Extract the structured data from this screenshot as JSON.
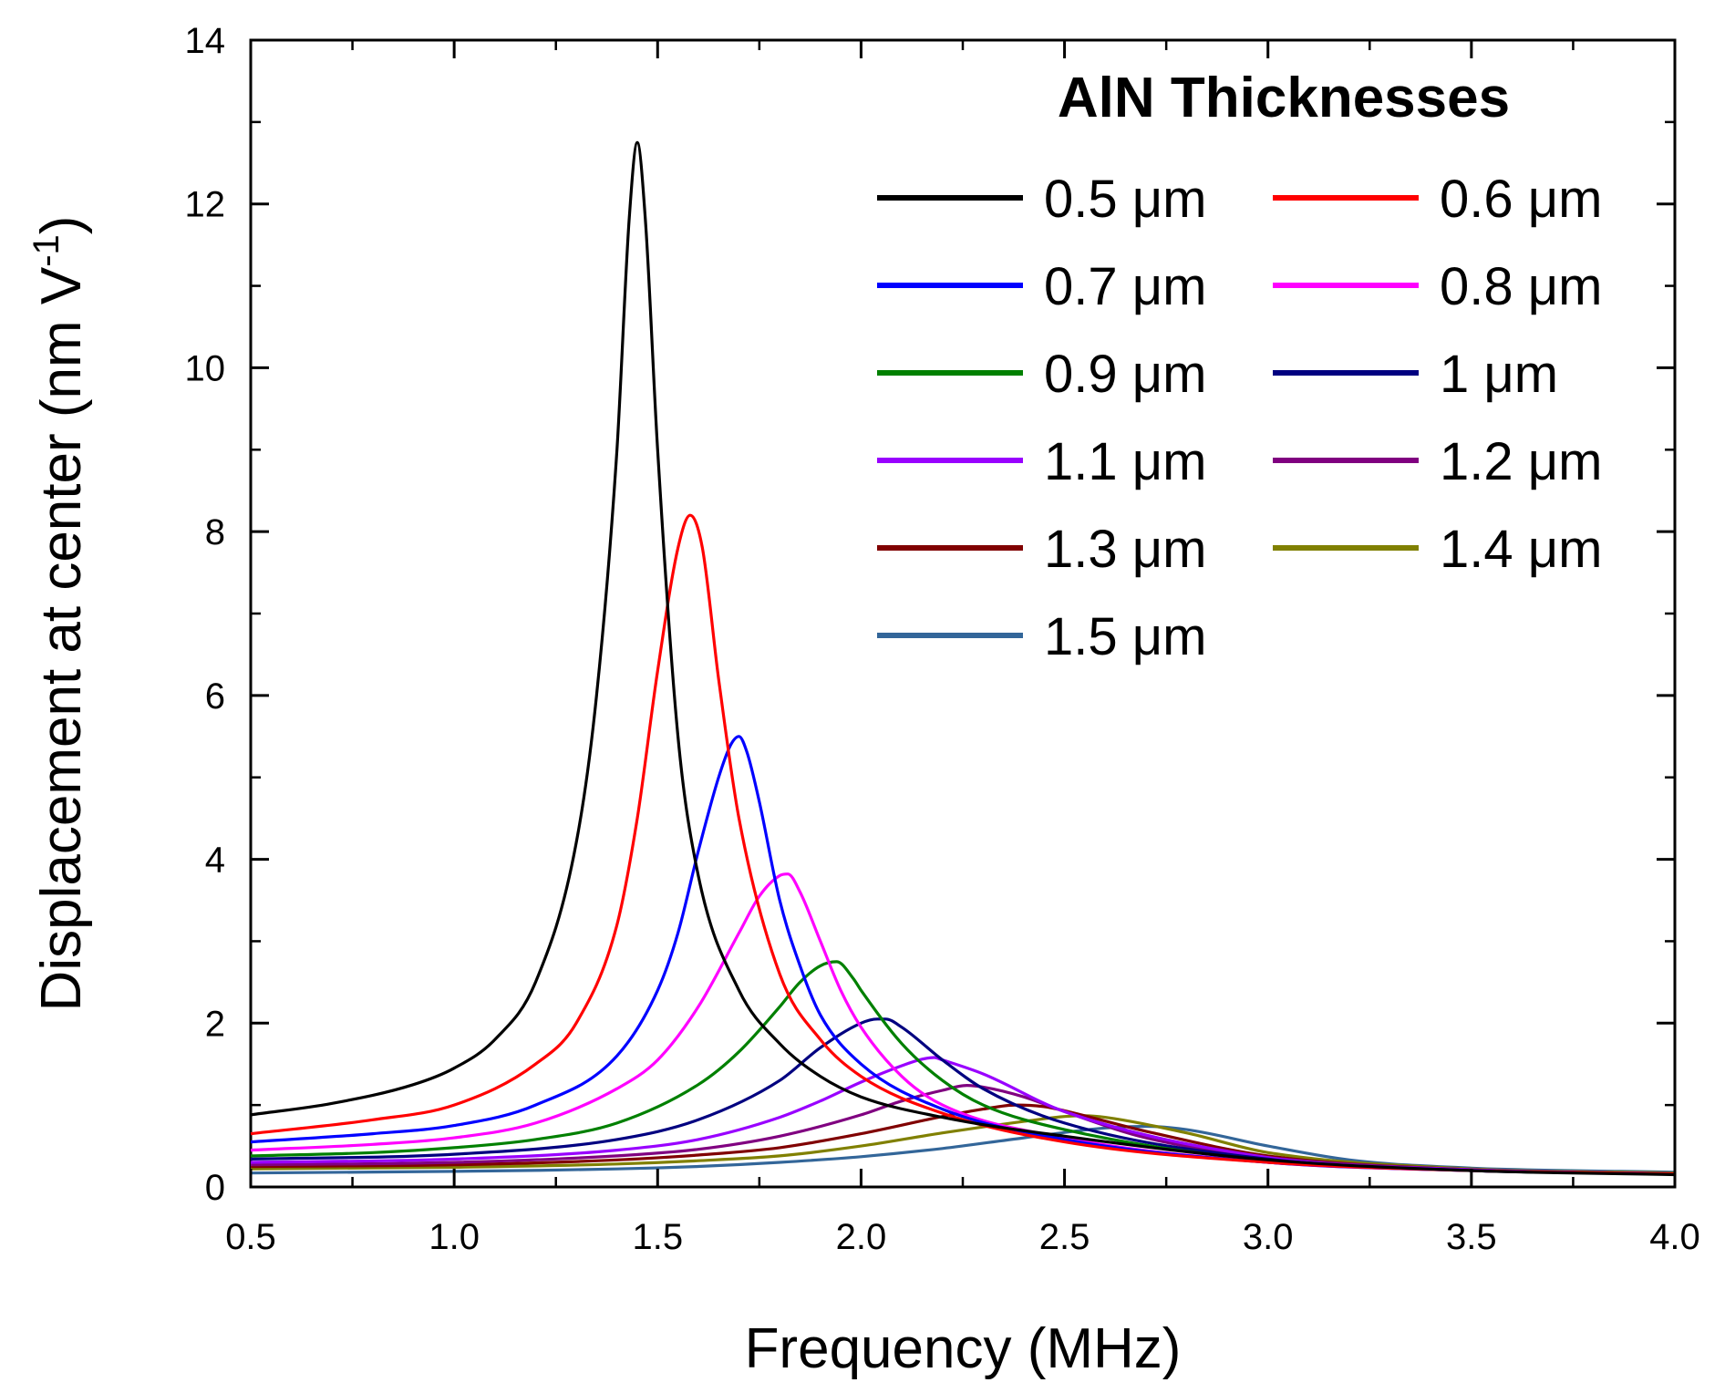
{
  "chart_data": {
    "type": "line",
    "title": "",
    "xlabel": "Frequency (MHz)",
    "ylabel": "Displacement at center (nm V",
    "ylabel_sup": "-1",
    "ylabel_close": ")",
    "xlim": [
      0.5,
      4.0
    ],
    "ylim": [
      0,
      14
    ],
    "xticks": [
      0.5,
      1.0,
      1.5,
      2.0,
      2.5,
      3.0,
      3.5,
      4.0
    ],
    "xtick_labels": [
      "0.5",
      "1.0",
      "1.5",
      "2.0",
      "2.5",
      "3.0",
      "3.5",
      "4.0"
    ],
    "yticks": [
      0,
      2,
      4,
      6,
      8,
      10,
      12,
      14
    ],
    "ytick_labels": [
      "0",
      "2",
      "4",
      "6",
      "8",
      "10",
      "12",
      "14"
    ],
    "grid": false,
    "legend_title": "AlN Thicknesses",
    "legend_position": "top-right",
    "series": [
      {
        "name": "0.5 μm",
        "color": "#000000",
        "x": [
          0.5,
          0.7,
          0.9,
          1.0,
          1.1,
          1.2,
          1.3,
          1.35,
          1.4,
          1.43,
          1.45,
          1.47,
          1.5,
          1.55,
          1.6,
          1.7,
          1.8,
          1.9,
          2.0,
          2.2,
          2.5,
          3.0,
          3.5,
          4.0
        ],
        "y": [
          0.88,
          1.02,
          1.25,
          1.45,
          1.8,
          2.5,
          4.2,
          6.0,
          9.0,
          11.8,
          12.75,
          11.8,
          9.0,
          5.5,
          3.8,
          2.4,
          1.75,
          1.35,
          1.1,
          0.85,
          0.62,
          0.33,
          0.2,
          0.15
        ]
      },
      {
        "name": "0.6 μm",
        "color": "#ff0000",
        "x": [
          0.5,
          0.8,
          1.0,
          1.2,
          1.3,
          1.4,
          1.45,
          1.5,
          1.55,
          1.58,
          1.61,
          1.65,
          1.7,
          1.8,
          1.9,
          2.0,
          2.2,
          2.5,
          3.0,
          3.5,
          4.0
        ],
        "y": [
          0.65,
          0.82,
          1.0,
          1.5,
          2.0,
          3.2,
          4.5,
          6.3,
          7.8,
          8.2,
          7.8,
          6.2,
          4.5,
          2.6,
          1.8,
          1.35,
          0.9,
          0.55,
          0.3,
          0.2,
          0.16
        ]
      },
      {
        "name": "0.7 μm",
        "color": "#0000ff",
        "x": [
          0.5,
          0.8,
          1.0,
          1.2,
          1.4,
          1.5,
          1.55,
          1.6,
          1.65,
          1.68,
          1.7,
          1.72,
          1.75,
          1.8,
          1.85,
          1.9,
          2.0,
          2.2,
          2.5,
          3.0,
          3.5,
          4.0
        ],
        "y": [
          0.55,
          0.65,
          0.75,
          1.0,
          1.6,
          2.4,
          3.1,
          4.1,
          5.0,
          5.4,
          5.5,
          5.3,
          4.7,
          3.5,
          2.7,
          2.1,
          1.5,
          0.95,
          0.58,
          0.3,
          0.2,
          0.16
        ]
      },
      {
        "name": "0.8 μm",
        "color": "#ff00ff",
        "x": [
          0.5,
          0.8,
          1.0,
          1.2,
          1.4,
          1.5,
          1.6,
          1.7,
          1.75,
          1.8,
          1.82,
          1.85,
          1.9,
          1.95,
          2.0,
          2.1,
          2.2,
          2.5,
          3.0,
          3.5,
          4.0
        ],
        "y": [
          0.45,
          0.52,
          0.6,
          0.78,
          1.2,
          1.55,
          2.2,
          3.1,
          3.55,
          3.8,
          3.82,
          3.6,
          3.0,
          2.4,
          1.95,
          1.35,
          1.0,
          0.6,
          0.3,
          0.2,
          0.16
        ]
      },
      {
        "name": "0.9 μm",
        "color": "#008000",
        "x": [
          0.5,
          0.8,
          1.0,
          1.2,
          1.4,
          1.6,
          1.7,
          1.8,
          1.85,
          1.9,
          1.94,
          1.98,
          2.0,
          2.1,
          2.2,
          2.3,
          2.5,
          3.0,
          3.5,
          4.0
        ],
        "y": [
          0.38,
          0.42,
          0.48,
          0.58,
          0.78,
          1.25,
          1.65,
          2.2,
          2.5,
          2.7,
          2.75,
          2.55,
          2.4,
          1.75,
          1.3,
          1.0,
          0.7,
          0.32,
          0.2,
          0.16
        ]
      },
      {
        "name": "1 μm",
        "color": "#000080",
        "x": [
          0.5,
          1.0,
          1.4,
          1.6,
          1.8,
          1.9,
          2.0,
          2.04,
          2.06,
          2.1,
          2.2,
          2.3,
          2.5,
          3.0,
          3.5,
          4.0
        ],
        "y": [
          0.34,
          0.4,
          0.58,
          0.82,
          1.3,
          1.7,
          2.0,
          2.05,
          2.05,
          1.95,
          1.55,
          1.2,
          0.78,
          0.34,
          0.2,
          0.16
        ]
      },
      {
        "name": "1.1 μm",
        "color": "#9900ff",
        "x": [
          0.5,
          1.0,
          1.4,
          1.6,
          1.8,
          1.9,
          2.0,
          2.1,
          2.15,
          2.18,
          2.2,
          2.3,
          2.5,
          3.0,
          3.5,
          4.0
        ],
        "y": [
          0.3,
          0.34,
          0.45,
          0.58,
          0.85,
          1.05,
          1.28,
          1.48,
          1.56,
          1.58,
          1.55,
          1.38,
          0.92,
          0.36,
          0.21,
          0.16
        ]
      },
      {
        "name": "1.2 μm",
        "color": "#800080",
        "x": [
          0.5,
          1.0,
          1.4,
          1.6,
          1.8,
          2.0,
          2.1,
          2.2,
          2.26,
          2.3,
          2.4,
          2.5,
          2.7,
          3.0,
          3.5,
          4.0
        ],
        "y": [
          0.27,
          0.3,
          0.38,
          0.46,
          0.62,
          0.88,
          1.05,
          1.18,
          1.24,
          1.22,
          1.1,
          0.92,
          0.6,
          0.36,
          0.21,
          0.16
        ]
      },
      {
        "name": "1.3 μm",
        "color": "#800000",
        "x": [
          0.5,
          1.0,
          1.4,
          1.6,
          1.8,
          2.0,
          2.2,
          2.3,
          2.38,
          2.45,
          2.5,
          2.7,
          3.0,
          3.5,
          4.0
        ],
        "y": [
          0.25,
          0.27,
          0.33,
          0.39,
          0.48,
          0.65,
          0.86,
          0.95,
          1.0,
          0.98,
          0.93,
          0.68,
          0.38,
          0.21,
          0.16
        ]
      },
      {
        "name": "1.4 μm",
        "color": "#808000",
        "x": [
          0.5,
          1.0,
          1.4,
          1.6,
          1.8,
          2.0,
          2.2,
          2.4,
          2.5,
          2.55,
          2.6,
          2.8,
          3.0,
          3.5,
          4.0
        ],
        "y": [
          0.22,
          0.24,
          0.28,
          0.32,
          0.38,
          0.5,
          0.66,
          0.8,
          0.86,
          0.87,
          0.85,
          0.66,
          0.42,
          0.22,
          0.17
        ]
      },
      {
        "name": "1.5 μm",
        "color": "#336699",
        "x": [
          0.5,
          1.0,
          1.4,
          1.6,
          1.8,
          2.0,
          2.2,
          2.4,
          2.6,
          2.7,
          2.8,
          3.0,
          3.2,
          3.5,
          4.0
        ],
        "y": [
          0.17,
          0.19,
          0.22,
          0.25,
          0.3,
          0.37,
          0.47,
          0.6,
          0.72,
          0.74,
          0.7,
          0.5,
          0.33,
          0.23,
          0.18
        ]
      }
    ]
  }
}
